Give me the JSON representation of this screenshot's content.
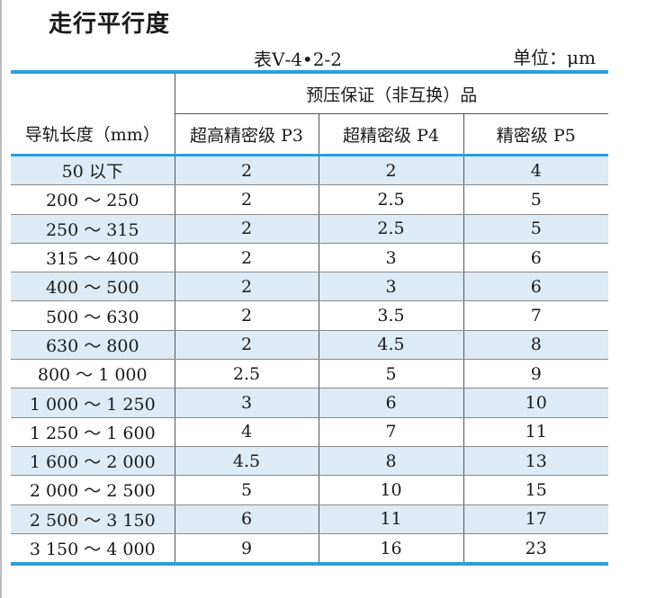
{
  "title": "走行平行度",
  "caption": "表Ⅴ-4•2-2",
  "unit": "单位：μm",
  "table": {
    "group_header": "预压保证（非互换）品",
    "columns": [
      "导轨长度（mm）",
      "超高精密级 P3",
      "超精密级 P4",
      "精密级 P5"
    ],
    "rows": [
      [
        "50 以下",
        "2",
        "2",
        "4"
      ],
      [
        "200 ～ 250",
        "2",
        "2.5",
        "5"
      ],
      [
        "250 ～ 315",
        "2",
        "2.5",
        "5"
      ],
      [
        "315 ～ 400",
        "2",
        "3",
        "6"
      ],
      [
        "400 ～ 500",
        "2",
        "3",
        "6"
      ],
      [
        "500 ～ 630",
        "2",
        "3.5",
        "7"
      ],
      [
        "630 ～ 800",
        "2",
        "4.5",
        "8"
      ],
      [
        "800 ～ 1 000",
        "2.5",
        "5",
        "9"
      ],
      [
        "1 000 ～ 1 250",
        "3",
        "6",
        "10"
      ],
      [
        "1 250 ～ 1 600",
        "4",
        "7",
        "11"
      ],
      [
        "1 600 ～ 2 000",
        "4.5",
        "8",
        "13"
      ],
      [
        "2 000 ～ 2 500",
        "5",
        "10",
        "15"
      ],
      [
        "2 500 ～ 3 150",
        "6",
        "11",
        "17"
      ],
      [
        "3 150 ～ 4 000",
        "9",
        "16",
        "23"
      ]
    ]
  },
  "colors": {
    "rule": "#2aa0dc",
    "shade": "#dcebf6"
  }
}
